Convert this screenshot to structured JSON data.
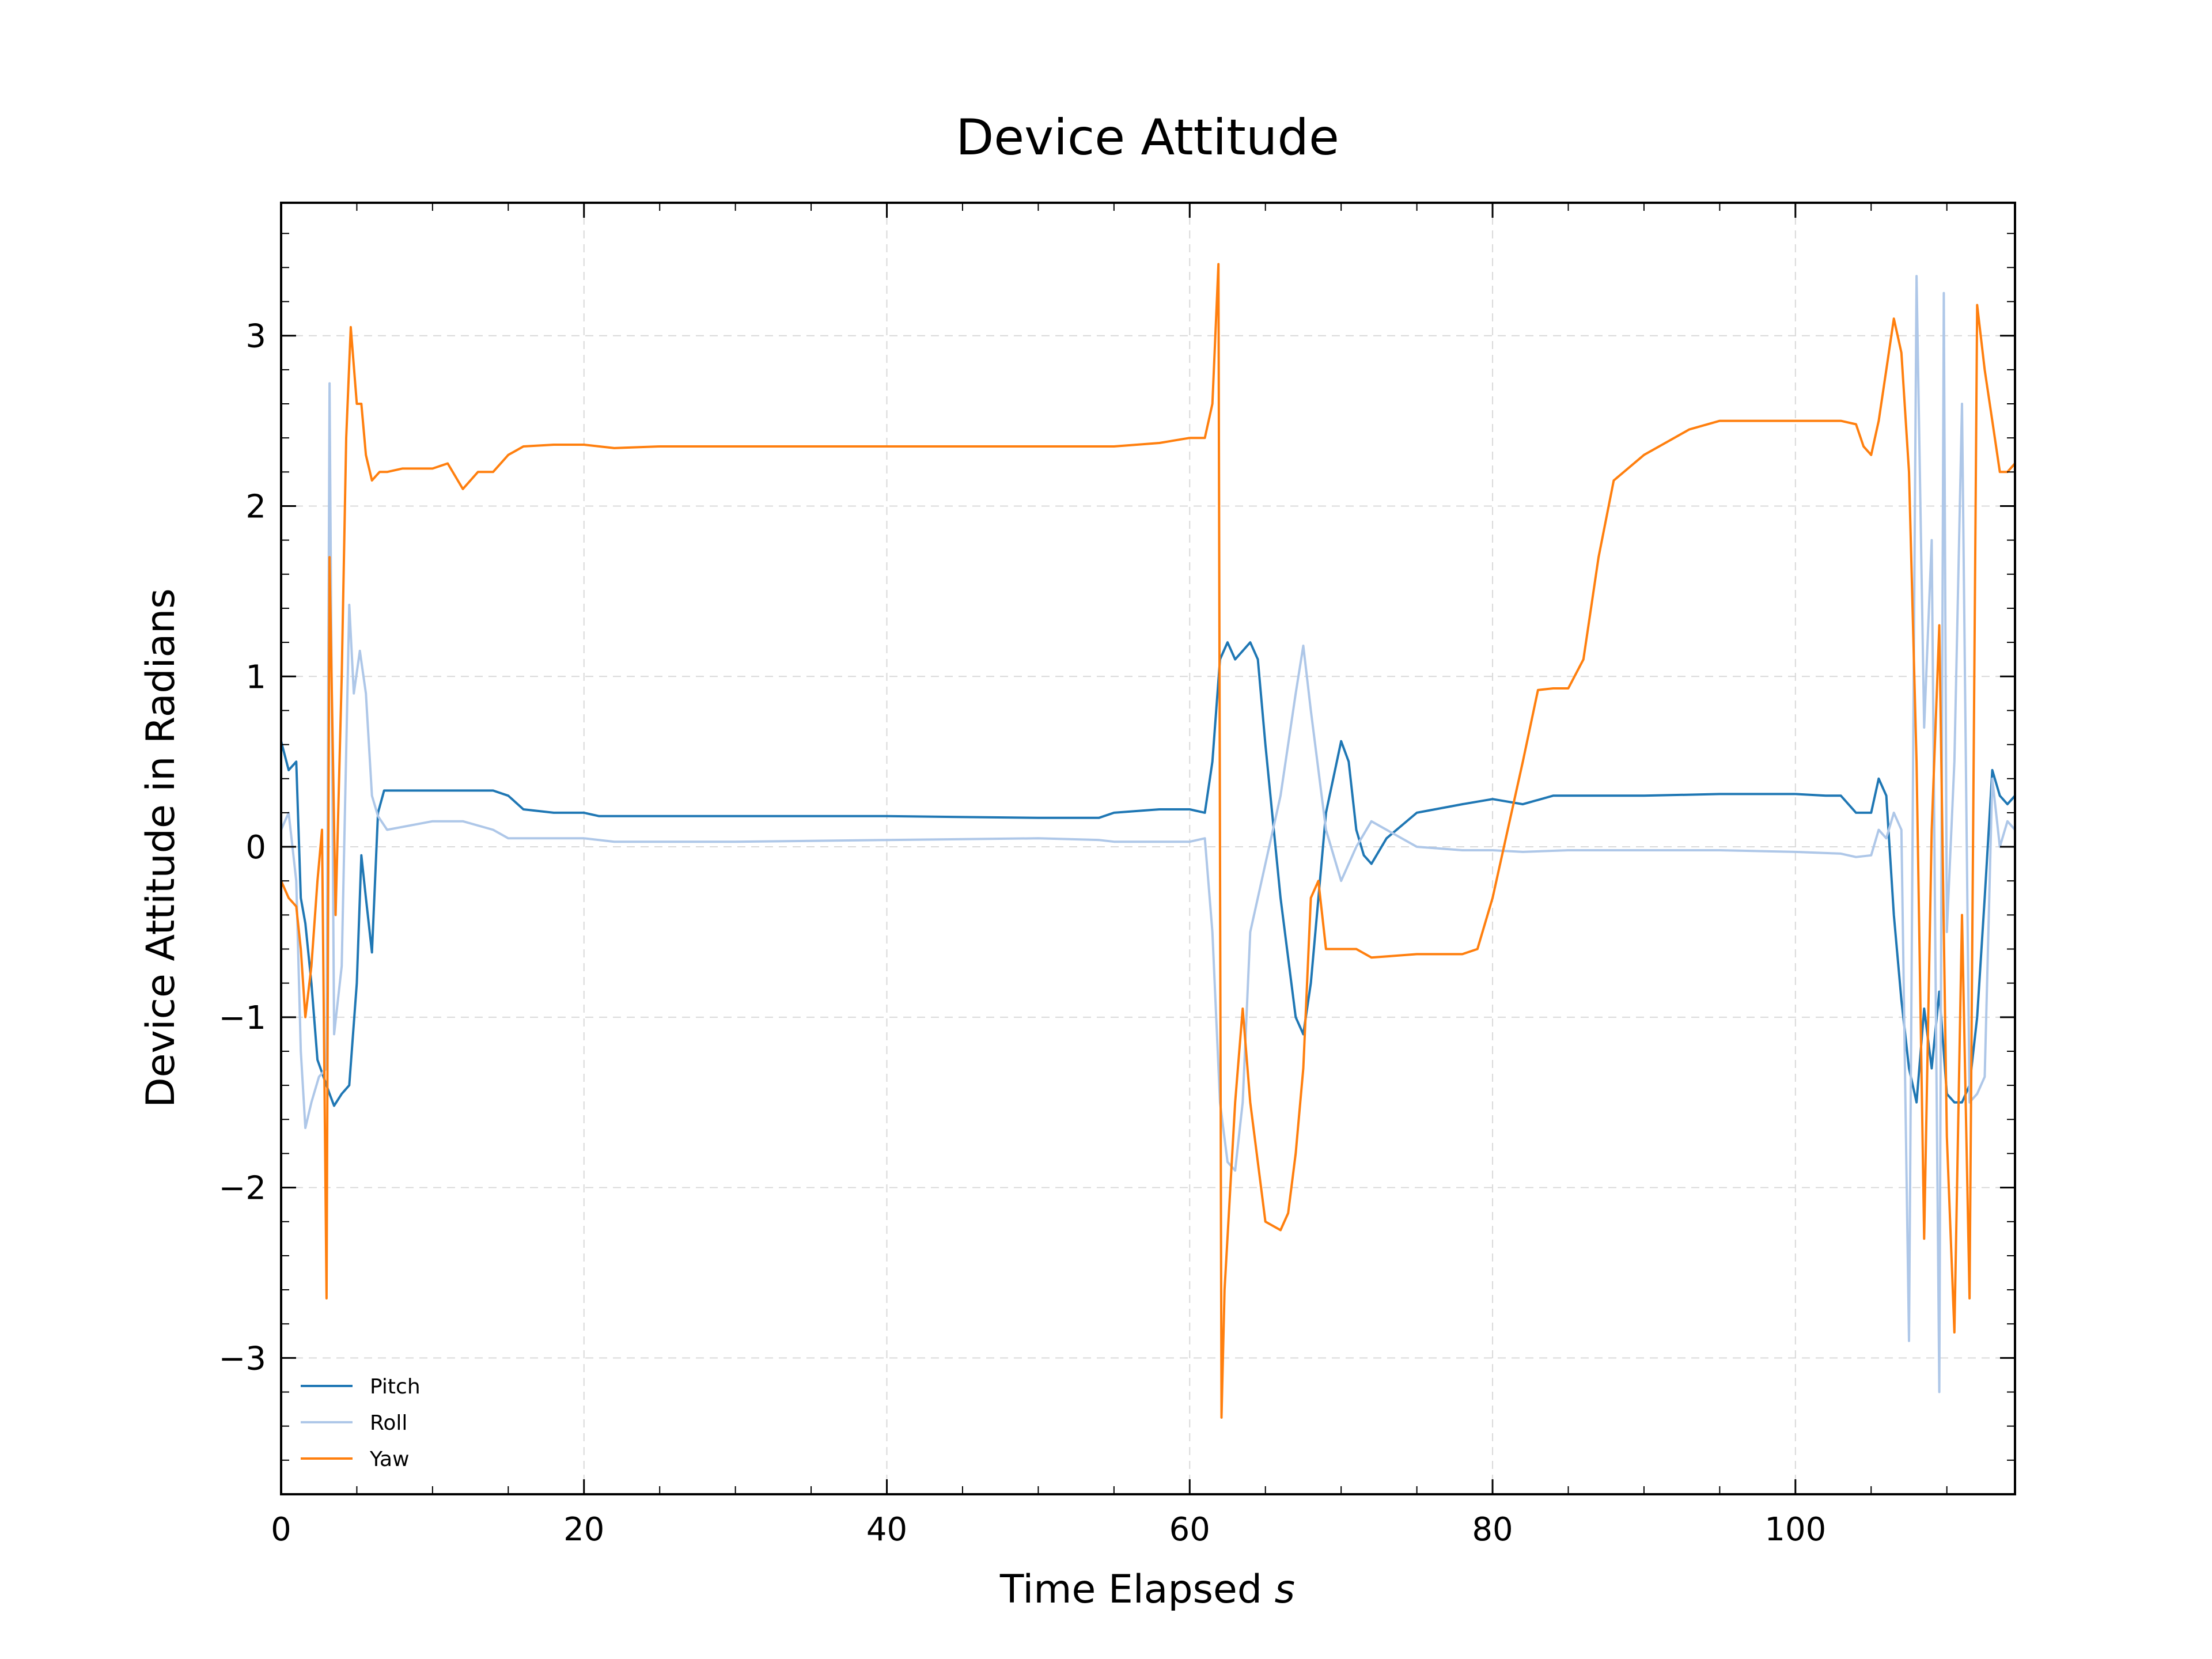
{
  "chart_data": {
    "type": "line",
    "title": "Device Attitude",
    "xlabel": "Time Elapsed",
    "xlabel_unit": "s",
    "ylabel": "Device Attitude in Radians",
    "xlim": [
      0,
      114.5
    ],
    "ylim": [
      -3.8,
      3.78
    ],
    "xticks": [
      0,
      20,
      40,
      60,
      80,
      100
    ],
    "yticks": [
      -3,
      -2,
      -1,
      0,
      1,
      2,
      3
    ],
    "xtick_labels": [
      "0",
      "20",
      "40",
      "60",
      "80",
      "100"
    ],
    "ytick_labels": [
      "−3",
      "−2",
      "−1",
      "0",
      "1",
      "2",
      "3"
    ],
    "grid": true,
    "legend_position": "lower-left",
    "series": [
      {
        "name": "Pitch",
        "color": "#1f77b4",
        "points": [
          [
            0,
            0.62
          ],
          [
            0.5,
            0.45
          ],
          [
            1,
            0.5
          ],
          [
            1.3,
            -0.3
          ],
          [
            1.6,
            -0.45
          ],
          [
            2,
            -0.8
          ],
          [
            2.4,
            -1.25
          ],
          [
            2.8,
            -1.35
          ],
          [
            3.2,
            -1.45
          ],
          [
            3.5,
            -1.52
          ],
          [
            4,
            -1.45
          ],
          [
            4.5,
            -1.4
          ],
          [
            5,
            -0.8
          ],
          [
            5.3,
            -0.05
          ],
          [
            5.6,
            -0.3
          ],
          [
            6,
            -0.62
          ],
          [
            6.4,
            0.2
          ],
          [
            6.8,
            0.33
          ],
          [
            8,
            0.33
          ],
          [
            10,
            0.33
          ],
          [
            12,
            0.33
          ],
          [
            14,
            0.33
          ],
          [
            15,
            0.3
          ],
          [
            16,
            0.22
          ],
          [
            18,
            0.2
          ],
          [
            20,
            0.2
          ],
          [
            21,
            0.18
          ],
          [
            30,
            0.18
          ],
          [
            40,
            0.18
          ],
          [
            50,
            0.17
          ],
          [
            54,
            0.17
          ],
          [
            55,
            0.2
          ],
          [
            58,
            0.22
          ],
          [
            60,
            0.22
          ],
          [
            61,
            0.2
          ],
          [
            61.5,
            0.5
          ],
          [
            62,
            1.1
          ],
          [
            62.5,
            1.2
          ],
          [
            63,
            1.1
          ],
          [
            63.5,
            1.15
          ],
          [
            64,
            1.2
          ],
          [
            64.5,
            1.1
          ],
          [
            65,
            0.6
          ],
          [
            66,
            -0.3
          ],
          [
            67,
            -1.0
          ],
          [
            67.5,
            -1.1
          ],
          [
            68,
            -0.8
          ],
          [
            69,
            0.2
          ],
          [
            70,
            0.62
          ],
          [
            70.5,
            0.5
          ],
          [
            71,
            0.1
          ],
          [
            71.5,
            -0.05
          ],
          [
            72,
            -0.1
          ],
          [
            73,
            0.05
          ],
          [
            75,
            0.2
          ],
          [
            78,
            0.25
          ],
          [
            80,
            0.28
          ],
          [
            82,
            0.25
          ],
          [
            84,
            0.3
          ],
          [
            90,
            0.3
          ],
          [
            95,
            0.31
          ],
          [
            100,
            0.31
          ],
          [
            102,
            0.3
          ],
          [
            103,
            0.3
          ],
          [
            104,
            0.2
          ],
          [
            105,
            0.2
          ],
          [
            105.5,
            0.4
          ],
          [
            106,
            0.3
          ],
          [
            106.5,
            -0.4
          ],
          [
            107,
            -0.9
          ],
          [
            107.5,
            -1.3
          ],
          [
            108,
            -1.5
          ],
          [
            108.5,
            -0.95
          ],
          [
            109,
            -1.3
          ],
          [
            109.5,
            -0.85
          ],
          [
            110,
            -1.45
          ],
          [
            110.5,
            -1.5
          ],
          [
            111,
            -1.5
          ],
          [
            111.5,
            -1.4
          ],
          [
            112,
            -1.0
          ],
          [
            112.5,
            -0.3
          ],
          [
            113,
            0.45
          ],
          [
            113.5,
            0.3
          ],
          [
            114,
            0.25
          ],
          [
            114.5,
            0.3
          ]
        ]
      },
      {
        "name": "Roll",
        "color": "#aec7e8",
        "points": [
          [
            0,
            0.1
          ],
          [
            0.5,
            0.2
          ],
          [
            1,
            -0.2
          ],
          [
            1.3,
            -1.2
          ],
          [
            1.6,
            -1.65
          ],
          [
            2,
            -1.5
          ],
          [
            2.5,
            -1.35
          ],
          [
            3,
            -1.3
          ],
          [
            3.2,
            2.72
          ],
          [
            3.5,
            -1.1
          ],
          [
            4,
            -0.7
          ],
          [
            4.5,
            1.42
          ],
          [
            4.8,
            0.9
          ],
          [
            5.2,
            1.15
          ],
          [
            5.6,
            0.9
          ],
          [
            6,
            0.3
          ],
          [
            6.4,
            0.18
          ],
          [
            7,
            0.1
          ],
          [
            10,
            0.15
          ],
          [
            12,
            0.15
          ],
          [
            14,
            0.1
          ],
          [
            15,
            0.05
          ],
          [
            16,
            0.05
          ],
          [
            18,
            0.05
          ],
          [
            20,
            0.05
          ],
          [
            22,
            0.03
          ],
          [
            30,
            0.03
          ],
          [
            40,
            0.04
          ],
          [
            50,
            0.05
          ],
          [
            54,
            0.04
          ],
          [
            55,
            0.03
          ],
          [
            60,
            0.03
          ],
          [
            61,
            0.05
          ],
          [
            61.5,
            -0.5
          ],
          [
            62,
            -1.5
          ],
          [
            62.5,
            -1.85
          ],
          [
            63,
            -1.9
          ],
          [
            63.5,
            -1.5
          ],
          [
            64,
            -0.5
          ],
          [
            65,
            -0.1
          ],
          [
            66,
            0.3
          ],
          [
            67,
            0.9
          ],
          [
            67.5,
            1.18
          ],
          [
            68,
            0.8
          ],
          [
            69,
            0.1
          ],
          [
            70,
            -0.2
          ],
          [
            71,
            0.0
          ],
          [
            72,
            0.15
          ],
          [
            73,
            0.1
          ],
          [
            75,
            0.0
          ],
          [
            78,
            -0.02
          ],
          [
            80,
            -0.02
          ],
          [
            82,
            -0.03
          ],
          [
            85,
            -0.02
          ],
          [
            90,
            -0.02
          ],
          [
            95,
            -0.02
          ],
          [
            100,
            -0.03
          ],
          [
            103,
            -0.04
          ],
          [
            104,
            -0.06
          ],
          [
            105,
            -0.05
          ],
          [
            105.5,
            0.1
          ],
          [
            106,
            0.05
          ],
          [
            106.5,
            0.2
          ],
          [
            107,
            0.1
          ],
          [
            107.5,
            -2.9
          ],
          [
            108,
            3.35
          ],
          [
            108.5,
            0.7
          ],
          [
            109,
            1.8
          ],
          [
            109.5,
            -3.2
          ],
          [
            109.8,
            3.25
          ],
          [
            110,
            -0.5
          ],
          [
            110.5,
            0.5
          ],
          [
            111,
            2.6
          ],
          [
            111.5,
            -1.5
          ],
          [
            112,
            -1.45
          ],
          [
            112.5,
            -1.35
          ],
          [
            113,
            0.4
          ],
          [
            113.5,
            0.0
          ],
          [
            114,
            0.15
          ],
          [
            114.5,
            0.1
          ]
        ]
      },
      {
        "name": "Yaw",
        "color": "#ff7f0e",
        "points": [
          [
            0,
            -0.2
          ],
          [
            0.5,
            -0.3
          ],
          [
            1,
            -0.35
          ],
          [
            1.3,
            -0.6
          ],
          [
            1.6,
            -1.0
          ],
          [
            2,
            -0.7
          ],
          [
            2.4,
            -0.2
          ],
          [
            2.7,
            0.1
          ],
          [
            3,
            -2.65
          ],
          [
            3.2,
            1.7
          ],
          [
            3.6,
            -0.4
          ],
          [
            4,
            1.0
          ],
          [
            4.3,
            2.4
          ],
          [
            4.6,
            3.05
          ],
          [
            5,
            2.6
          ],
          [
            5.3,
            2.6
          ],
          [
            5.6,
            2.3
          ],
          [
            6,
            2.15
          ],
          [
            6.5,
            2.2
          ],
          [
            7,
            2.2
          ],
          [
            8,
            2.22
          ],
          [
            10,
            2.22
          ],
          [
            11,
            2.25
          ],
          [
            12,
            2.1
          ],
          [
            13,
            2.2
          ],
          [
            14,
            2.2
          ],
          [
            15,
            2.3
          ],
          [
            16,
            2.35
          ],
          [
            18,
            2.36
          ],
          [
            20,
            2.36
          ],
          [
            22,
            2.34
          ],
          [
            25,
            2.35
          ],
          [
            30,
            2.35
          ],
          [
            40,
            2.35
          ],
          [
            50,
            2.35
          ],
          [
            55,
            2.35
          ],
          [
            58,
            2.37
          ],
          [
            60,
            2.4
          ],
          [
            61,
            2.4
          ],
          [
            61.5,
            2.6
          ],
          [
            61.9,
            3.42
          ],
          [
            62.1,
            -3.35
          ],
          [
            62.3,
            -2.6
          ],
          [
            63,
            -1.5
          ],
          [
            63.5,
            -0.95
          ],
          [
            64,
            -1.5
          ],
          [
            65,
            -2.2
          ],
          [
            66,
            -2.25
          ],
          [
            66.5,
            -2.15
          ],
          [
            67,
            -1.8
          ],
          [
            67.5,
            -1.3
          ],
          [
            68,
            -0.3
          ],
          [
            68.5,
            -0.2
          ],
          [
            69,
            -0.6
          ],
          [
            70,
            -0.6
          ],
          [
            71,
            -0.6
          ],
          [
            72,
            -0.65
          ],
          [
            75,
            -0.63
          ],
          [
            78,
            -0.63
          ],
          [
            79,
            -0.6
          ],
          [
            80,
            -0.3
          ],
          [
            82,
            0.5
          ],
          [
            83,
            0.92
          ],
          [
            84,
            0.93
          ],
          [
            85,
            0.93
          ],
          [
            86,
            1.1
          ],
          [
            87,
            1.7
          ],
          [
            88,
            2.15
          ],
          [
            90,
            2.3
          ],
          [
            93,
            2.45
          ],
          [
            95,
            2.5
          ],
          [
            100,
            2.5
          ],
          [
            103,
            2.5
          ],
          [
            104,
            2.48
          ],
          [
            104.5,
            2.35
          ],
          [
            105,
            2.3
          ],
          [
            105.5,
            2.5
          ],
          [
            106,
            2.8
          ],
          [
            106.5,
            3.1
          ],
          [
            107,
            2.9
          ],
          [
            107.5,
            2.2
          ],
          [
            108,
            0.5
          ],
          [
            108.5,
            -2.3
          ],
          [
            109,
            0.1
          ],
          [
            109.5,
            1.3
          ],
          [
            110,
            -1.7
          ],
          [
            110.5,
            -2.85
          ],
          [
            111,
            -0.4
          ],
          [
            111.5,
            -2.65
          ],
          [
            112,
            3.18
          ],
          [
            112.5,
            2.8
          ],
          [
            113,
            2.5
          ],
          [
            113.5,
            2.2
          ],
          [
            114,
            2.2
          ],
          [
            114.5,
            2.25
          ]
        ]
      }
    ]
  }
}
